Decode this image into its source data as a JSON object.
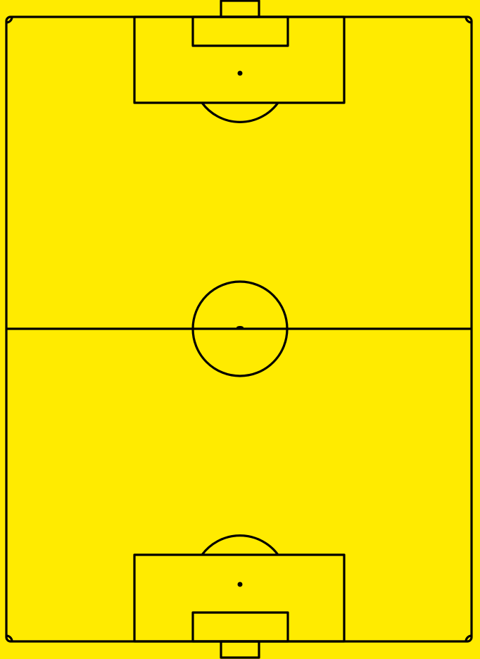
{
  "pitch": {
    "field_color": "#FFEB00",
    "line_color": "#000000",
    "orientation": "vertical",
    "elements": [
      "outer-boundary",
      "halfway-line",
      "centre-circle",
      "centre-spot",
      "top-penalty-area",
      "top-goal-area",
      "top-penalty-spot",
      "top-penalty-arc",
      "top-goal",
      "bottom-penalty-area",
      "bottom-goal-area",
      "bottom-penalty-spot",
      "bottom-penalty-arc",
      "bottom-goal",
      "corner-arcs"
    ]
  }
}
